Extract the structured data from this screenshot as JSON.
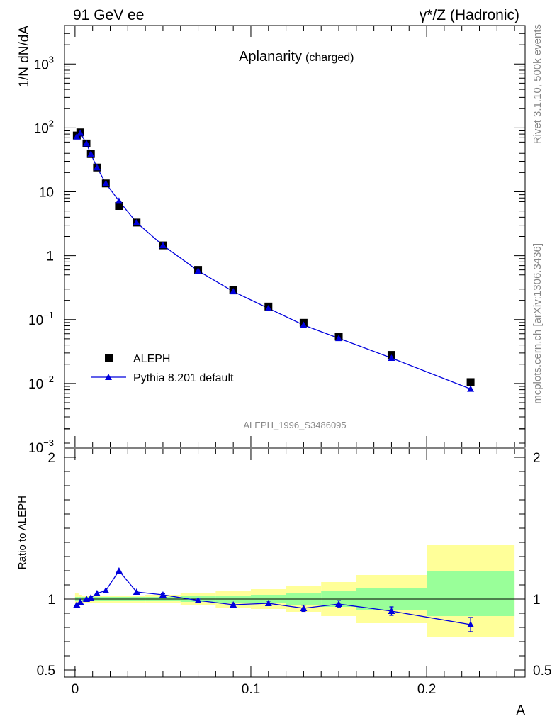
{
  "header": {
    "left_label": "91 GeV ee",
    "right_label": "γ*/Z (Hadronic)"
  },
  "side_labels": {
    "rivet": "Rivet 3.1.10,  500k events",
    "mcplots": "mcplots.cern.ch [arXiv:1306.3436]"
  },
  "chart_data": [
    {
      "type": "scatter",
      "title": "Aplanarity",
      "subtitle": "(charged)",
      "ylabel": "1/N dN/dA",
      "yscale": "log",
      "ylim": [
        0.001,
        4000
      ],
      "xlim": [
        -0.006,
        0.256
      ],
      "y_ticks": [
        "10^-3",
        "10^-2",
        "10^-1",
        "1",
        "10",
        "10^2",
        "10^3"
      ],
      "watermark": "ALEPH_1996_S3486095",
      "legend_position": "bottom-left",
      "colors": {
        "data": "#000000",
        "mc": "#0000dd"
      },
      "series": [
        {
          "name": "ALEPH",
          "style": "marker",
          "x": [
            0.001,
            0.003,
            0.0065,
            0.009,
            0.0125,
            0.0175,
            0.025,
            0.035,
            0.05,
            0.07,
            0.09,
            0.11,
            0.13,
            0.15,
            0.18,
            0.225
          ],
          "y": [
            76,
            85,
            57,
            39,
            24,
            13.5,
            6.0,
            3.3,
            1.45,
            0.6,
            0.29,
            0.16,
            0.089,
            0.054,
            0.028,
            0.0105
          ]
        },
        {
          "name": "Pythia 8.201 default",
          "style": "line+triangle",
          "x": [
            0.001,
            0.003,
            0.0065,
            0.009,
            0.0125,
            0.0175,
            0.025,
            0.035,
            0.05,
            0.07,
            0.09,
            0.11,
            0.13,
            0.15,
            0.18,
            0.225
          ],
          "y": [
            73,
            83,
            57,
            39,
            24,
            13.5,
            7.2,
            3.3,
            1.45,
            0.58,
            0.275,
            0.15,
            0.082,
            0.051,
            0.025,
            0.0082
          ]
        }
      ]
    },
    {
      "type": "line",
      "ylabel": "Ratio to ALEPH",
      "xlabel": "A",
      "ylim": [
        0.45,
        2.3
      ],
      "xlim": [
        -0.006,
        0.256
      ],
      "x_ticks": [
        "0",
        "0.1",
        "0.2"
      ],
      "y_ticks": [
        "0.5",
        "1",
        "2"
      ],
      "reference_line": 1,
      "colors": {
        "stat_band": "#99ff99",
        "total_band": "#ffff99"
      },
      "bands": [
        {
          "x_lo": 0.0,
          "x_hi": 0.002,
          "stat": [
            0.985,
            1.015
          ],
          "total": [
            0.96,
            1.04
          ]
        },
        {
          "x_lo": 0.002,
          "x_hi": 0.004,
          "stat": [
            0.985,
            1.015
          ],
          "total": [
            0.97,
            1.03
          ]
        },
        {
          "x_lo": 0.004,
          "x_hi": 0.01,
          "stat": [
            0.985,
            1.015
          ],
          "total": [
            0.975,
            1.025
          ]
        },
        {
          "x_lo": 0.01,
          "x_hi": 0.02,
          "stat": [
            0.985,
            1.015
          ],
          "total": [
            0.975,
            1.025
          ]
        },
        {
          "x_lo": 0.02,
          "x_hi": 0.04,
          "stat": [
            0.985,
            1.015
          ],
          "total": [
            0.975,
            1.025
          ]
        },
        {
          "x_lo": 0.04,
          "x_hi": 0.06,
          "stat": [
            0.985,
            1.015
          ],
          "total": [
            0.97,
            1.03
          ]
        },
        {
          "x_lo": 0.06,
          "x_hi": 0.08,
          "stat": [
            0.98,
            1.02
          ],
          "total": [
            0.955,
            1.045
          ]
        },
        {
          "x_lo": 0.08,
          "x_hi": 0.1,
          "stat": [
            0.975,
            1.025
          ],
          "total": [
            0.94,
            1.06
          ]
        },
        {
          "x_lo": 0.1,
          "x_hi": 0.12,
          "stat": [
            0.97,
            1.03
          ],
          "total": [
            0.93,
            1.07
          ]
        },
        {
          "x_lo": 0.12,
          "x_hi": 0.14,
          "stat": [
            0.96,
            1.04
          ],
          "total": [
            0.91,
            1.09
          ]
        },
        {
          "x_lo": 0.14,
          "x_hi": 0.16,
          "stat": [
            0.945,
            1.055
          ],
          "total": [
            0.88,
            1.12
          ]
        },
        {
          "x_lo": 0.16,
          "x_hi": 0.2,
          "stat": [
            0.92,
            1.08
          ],
          "total": [
            0.83,
            1.17
          ]
        },
        {
          "x_lo": 0.2,
          "x_hi": 0.25,
          "stat": [
            0.88,
            1.2
          ],
          "total": [
            0.73,
            1.38
          ]
        }
      ],
      "series": [
        {
          "name": "Pythia 8.201 default",
          "x": [
            0.001,
            0.003,
            0.0065,
            0.009,
            0.0125,
            0.0175,
            0.025,
            0.035,
            0.05,
            0.07,
            0.09,
            0.11,
            0.13,
            0.15,
            0.18,
            0.225
          ],
          "y": [
            0.96,
            0.98,
            1.0,
            1.01,
            1.04,
            1.06,
            1.2,
            1.05,
            1.03,
            0.99,
            0.96,
            0.97,
            0.935,
            0.965,
            0.915,
            0.82
          ],
          "err": [
            0.006,
            0.006,
            0.006,
            0.006,
            0.006,
            0.006,
            0.006,
            0.006,
            0.008,
            0.01,
            0.012,
            0.016,
            0.022,
            0.024,
            0.03,
            0.05
          ]
        }
      ]
    }
  ]
}
